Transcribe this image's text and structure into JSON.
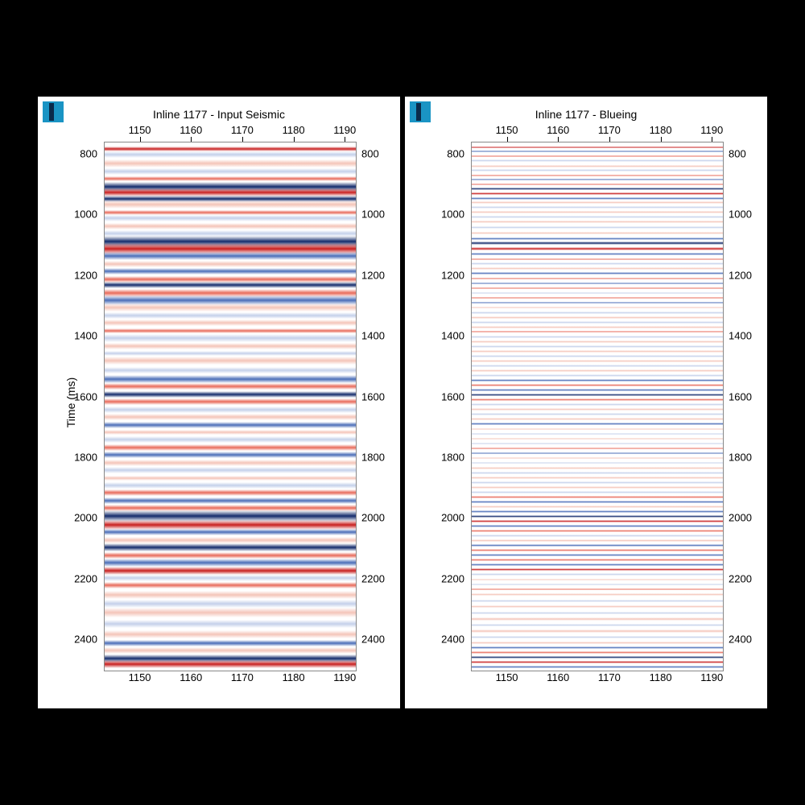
{
  "background_color": "#000000",
  "panel_bg": "#ffffff",
  "axis_font_size": 13,
  "title_font_size": 14,
  "badge_color": "#1a94c4",
  "badge_bar_color": "#0a2a4a",
  "x_axis": {
    "min": 1143,
    "max": 1192,
    "ticks": [
      1150,
      1160,
      1170,
      1180,
      1190
    ]
  },
  "y_axis": {
    "label": "Time (ms)",
    "min": 760,
    "max": 2500,
    "ticks": [
      800,
      1000,
      1200,
      1400,
      1600,
      1800,
      2000,
      2200,
      2400
    ]
  },
  "colors": {
    "pos_strong": "#c81e1e",
    "pos_mid": "#e86a5a",
    "pos_weak": "#f4c4b8",
    "neg_strong": "#122a6b",
    "neg_mid": "#4a6db8",
    "neg_weak": "#c4d0ea",
    "neutral": "#ffffff"
  },
  "panels": [
    {
      "title": "Inline 1177 - Input Seismic",
      "thickness_scale": 1.0,
      "traces": [
        {
          "t": 780,
          "c": "pos_strong",
          "w": 6
        },
        {
          "t": 800,
          "c": "neg_weak",
          "w": 8
        },
        {
          "t": 830,
          "c": "pos_weak",
          "w": 10
        },
        {
          "t": 855,
          "c": "neg_weak",
          "w": 8
        },
        {
          "t": 880,
          "c": "pos_mid",
          "w": 6
        },
        {
          "t": 905,
          "c": "neg_strong",
          "w": 12
        },
        {
          "t": 925,
          "c": "pos_strong",
          "w": 10
        },
        {
          "t": 945,
          "c": "neg_strong",
          "w": 8
        },
        {
          "t": 965,
          "c": "pos_weak",
          "w": 10
        },
        {
          "t": 990,
          "c": "pos_mid",
          "w": 6
        },
        {
          "t": 1010,
          "c": "neg_weak",
          "w": 8
        },
        {
          "t": 1035,
          "c": "pos_weak",
          "w": 8
        },
        {
          "t": 1060,
          "c": "neg_weak",
          "w": 8
        },
        {
          "t": 1085,
          "c": "neg_strong",
          "w": 14
        },
        {
          "t": 1110,
          "c": "pos_strong",
          "w": 14
        },
        {
          "t": 1135,
          "c": "neg_mid",
          "w": 10
        },
        {
          "t": 1160,
          "c": "pos_weak",
          "w": 8
        },
        {
          "t": 1185,
          "c": "neg_mid",
          "w": 8
        },
        {
          "t": 1210,
          "c": "pos_mid",
          "w": 8
        },
        {
          "t": 1230,
          "c": "neg_strong",
          "w": 8
        },
        {
          "t": 1255,
          "c": "pos_mid",
          "w": 10
        },
        {
          "t": 1280,
          "c": "neg_mid",
          "w": 12
        },
        {
          "t": 1305,
          "c": "pos_weak",
          "w": 10
        },
        {
          "t": 1330,
          "c": "neg_weak",
          "w": 8
        },
        {
          "t": 1355,
          "c": "pos_weak",
          "w": 8
        },
        {
          "t": 1380,
          "c": "pos_mid",
          "w": 6
        },
        {
          "t": 1405,
          "c": "neg_weak",
          "w": 10
        },
        {
          "t": 1430,
          "c": "pos_weak",
          "w": 8
        },
        {
          "t": 1455,
          "c": "neg_weak",
          "w": 6
        },
        {
          "t": 1480,
          "c": "pos_weak",
          "w": 10
        },
        {
          "t": 1510,
          "c": "neg_weak",
          "w": 8
        },
        {
          "t": 1540,
          "c": "neg_mid",
          "w": 10
        },
        {
          "t": 1565,
          "c": "pos_mid",
          "w": 8
        },
        {
          "t": 1590,
          "c": "neg_strong",
          "w": 8
        },
        {
          "t": 1615,
          "c": "pos_mid",
          "w": 8
        },
        {
          "t": 1640,
          "c": "neg_weak",
          "w": 8
        },
        {
          "t": 1665,
          "c": "pos_weak",
          "w": 8
        },
        {
          "t": 1690,
          "c": "neg_mid",
          "w": 8
        },
        {
          "t": 1715,
          "c": "pos_weak",
          "w": 6
        },
        {
          "t": 1740,
          "c": "neg_weak",
          "w": 8
        },
        {
          "t": 1765,
          "c": "pos_mid",
          "w": 8
        },
        {
          "t": 1790,
          "c": "neg_mid",
          "w": 8
        },
        {
          "t": 1815,
          "c": "pos_weak",
          "w": 8
        },
        {
          "t": 1840,
          "c": "neg_weak",
          "w": 8
        },
        {
          "t": 1865,
          "c": "pos_weak",
          "w": 6
        },
        {
          "t": 1890,
          "c": "neg_weak",
          "w": 8
        },
        {
          "t": 1915,
          "c": "pos_mid",
          "w": 8
        },
        {
          "t": 1940,
          "c": "neg_mid",
          "w": 8
        },
        {
          "t": 1965,
          "c": "pos_mid",
          "w": 8
        },
        {
          "t": 1990,
          "c": "neg_strong",
          "w": 14
        },
        {
          "t": 2020,
          "c": "pos_strong",
          "w": 12
        },
        {
          "t": 2045,
          "c": "neg_mid",
          "w": 8
        },
        {
          "t": 2070,
          "c": "pos_weak",
          "w": 8
        },
        {
          "t": 2095,
          "c": "neg_strong",
          "w": 10
        },
        {
          "t": 2120,
          "c": "pos_mid",
          "w": 8
        },
        {
          "t": 2145,
          "c": "neg_mid",
          "w": 10
        },
        {
          "t": 2170,
          "c": "pos_strong",
          "w": 10
        },
        {
          "t": 2195,
          "c": "neg_weak",
          "w": 8
        },
        {
          "t": 2220,
          "c": "pos_mid",
          "w": 8
        },
        {
          "t": 2250,
          "c": "pos_weak",
          "w": 10
        },
        {
          "t": 2280,
          "c": "neg_weak",
          "w": 10
        },
        {
          "t": 2310,
          "c": "pos_weak",
          "w": 12
        },
        {
          "t": 2345,
          "c": "neg_weak",
          "w": 10
        },
        {
          "t": 2380,
          "c": "pos_weak",
          "w": 10
        },
        {
          "t": 2410,
          "c": "neg_mid",
          "w": 8
        },
        {
          "t": 2435,
          "c": "pos_weak",
          "w": 8
        },
        {
          "t": 2460,
          "c": "neg_strong",
          "w": 10
        },
        {
          "t": 2480,
          "c": "pos_strong",
          "w": 10
        }
      ]
    },
    {
      "title": "Inline 1177 - Blueing",
      "thickness_scale": 0.55,
      "traces": [
        {
          "t": 775,
          "c": "pos_strong",
          "w": 4
        },
        {
          "t": 790,
          "c": "neg_mid",
          "w": 4
        },
        {
          "t": 805,
          "c": "pos_mid",
          "w": 4
        },
        {
          "t": 820,
          "c": "neg_weak",
          "w": 6
        },
        {
          "t": 838,
          "c": "pos_weak",
          "w": 5
        },
        {
          "t": 852,
          "c": "neg_weak",
          "w": 5
        },
        {
          "t": 868,
          "c": "pos_mid",
          "w": 4
        },
        {
          "t": 882,
          "c": "neg_mid",
          "w": 5
        },
        {
          "t": 898,
          "c": "pos_mid",
          "w": 4
        },
        {
          "t": 912,
          "c": "neg_strong",
          "w": 6
        },
        {
          "t": 928,
          "c": "pos_strong",
          "w": 6
        },
        {
          "t": 944,
          "c": "neg_mid",
          "w": 5
        },
        {
          "t": 958,
          "c": "pos_weak",
          "w": 5
        },
        {
          "t": 974,
          "c": "neg_weak",
          "w": 5
        },
        {
          "t": 990,
          "c": "pos_weak",
          "w": 5
        },
        {
          "t": 1006,
          "c": "neg_weak",
          "w": 5
        },
        {
          "t": 1022,
          "c": "pos_weak",
          "w": 5
        },
        {
          "t": 1040,
          "c": "neg_weak",
          "w": 5
        },
        {
          "t": 1058,
          "c": "pos_weak",
          "w": 5
        },
        {
          "t": 1076,
          "c": "neg_mid",
          "w": 5
        },
        {
          "t": 1092,
          "c": "neg_strong",
          "w": 8
        },
        {
          "t": 1110,
          "c": "pos_strong",
          "w": 8
        },
        {
          "t": 1128,
          "c": "neg_mid",
          "w": 5
        },
        {
          "t": 1144,
          "c": "pos_mid",
          "w": 4
        },
        {
          "t": 1160,
          "c": "neg_weak",
          "w": 5
        },
        {
          "t": 1176,
          "c": "pos_weak",
          "w": 5
        },
        {
          "t": 1192,
          "c": "neg_mid",
          "w": 5
        },
        {
          "t": 1208,
          "c": "pos_mid",
          "w": 5
        },
        {
          "t": 1224,
          "c": "neg_mid",
          "w": 5
        },
        {
          "t": 1240,
          "c": "pos_mid",
          "w": 5
        },
        {
          "t": 1256,
          "c": "neg_weak",
          "w": 5
        },
        {
          "t": 1272,
          "c": "pos_mid",
          "w": 5
        },
        {
          "t": 1288,
          "c": "neg_mid",
          "w": 5
        },
        {
          "t": 1304,
          "c": "pos_weak",
          "w": 5
        },
        {
          "t": 1320,
          "c": "neg_weak",
          "w": 5
        },
        {
          "t": 1336,
          "c": "pos_weak",
          "w": 5
        },
        {
          "t": 1352,
          "c": "neg_weak",
          "w": 5
        },
        {
          "t": 1368,
          "c": "pos_weak",
          "w": 5
        },
        {
          "t": 1384,
          "c": "pos_mid",
          "w": 4
        },
        {
          "t": 1400,
          "c": "neg_weak",
          "w": 5
        },
        {
          "t": 1416,
          "c": "pos_weak",
          "w": 5
        },
        {
          "t": 1432,
          "c": "neg_weak",
          "w": 5
        },
        {
          "t": 1448,
          "c": "pos_weak",
          "w": 5
        },
        {
          "t": 1464,
          "c": "neg_weak",
          "w": 5
        },
        {
          "t": 1480,
          "c": "pos_weak",
          "w": 5
        },
        {
          "t": 1496,
          "c": "neg_weak",
          "w": 5
        },
        {
          "t": 1512,
          "c": "pos_weak",
          "w": 5
        },
        {
          "t": 1528,
          "c": "neg_weak",
          "w": 5
        },
        {
          "t": 1544,
          "c": "neg_mid",
          "w": 5
        },
        {
          "t": 1560,
          "c": "pos_mid",
          "w": 5
        },
        {
          "t": 1576,
          "c": "neg_mid",
          "w": 5
        },
        {
          "t": 1592,
          "c": "neg_strong",
          "w": 5
        },
        {
          "t": 1608,
          "c": "pos_mid",
          "w": 5
        },
        {
          "t": 1624,
          "c": "neg_weak",
          "w": 5
        },
        {
          "t": 1640,
          "c": "pos_weak",
          "w": 5
        },
        {
          "t": 1656,
          "c": "neg_weak",
          "w": 5
        },
        {
          "t": 1672,
          "c": "pos_weak",
          "w": 5
        },
        {
          "t": 1688,
          "c": "neg_mid",
          "w": 5
        },
        {
          "t": 1704,
          "c": "pos_weak",
          "w": 5
        },
        {
          "t": 1720,
          "c": "neg_weak",
          "w": 5
        },
        {
          "t": 1736,
          "c": "pos_weak",
          "w": 5
        },
        {
          "t": 1752,
          "c": "neg_weak",
          "w": 5
        },
        {
          "t": 1768,
          "c": "pos_mid",
          "w": 5
        },
        {
          "t": 1784,
          "c": "neg_mid",
          "w": 5
        },
        {
          "t": 1800,
          "c": "pos_weak",
          "w": 5
        },
        {
          "t": 1816,
          "c": "neg_weak",
          "w": 5
        },
        {
          "t": 1832,
          "c": "pos_weak",
          "w": 5
        },
        {
          "t": 1848,
          "c": "neg_weak",
          "w": 5
        },
        {
          "t": 1864,
          "c": "pos_weak",
          "w": 5
        },
        {
          "t": 1880,
          "c": "neg_weak",
          "w": 5
        },
        {
          "t": 1896,
          "c": "pos_weak",
          "w": 5
        },
        {
          "t": 1912,
          "c": "neg_weak",
          "w": 5
        },
        {
          "t": 1928,
          "c": "pos_mid",
          "w": 5
        },
        {
          "t": 1944,
          "c": "neg_mid",
          "w": 5
        },
        {
          "t": 1960,
          "c": "pos_weak",
          "w": 5
        },
        {
          "t": 1976,
          "c": "neg_mid",
          "w": 5
        },
        {
          "t": 1992,
          "c": "neg_strong",
          "w": 6
        },
        {
          "t": 2008,
          "c": "pos_strong",
          "w": 6
        },
        {
          "t": 2024,
          "c": "neg_mid",
          "w": 5
        },
        {
          "t": 2040,
          "c": "pos_mid",
          "w": 5
        },
        {
          "t": 2056,
          "c": "neg_weak",
          "w": 5
        },
        {
          "t": 2072,
          "c": "pos_weak",
          "w": 5
        },
        {
          "t": 2088,
          "c": "neg_mid",
          "w": 5
        },
        {
          "t": 2104,
          "c": "pos_mid",
          "w": 5
        },
        {
          "t": 2120,
          "c": "neg_mid",
          "w": 5
        },
        {
          "t": 2136,
          "c": "pos_mid",
          "w": 5
        },
        {
          "t": 2152,
          "c": "neg_mid",
          "w": 5
        },
        {
          "t": 2168,
          "c": "pos_strong",
          "w": 5
        },
        {
          "t": 2184,
          "c": "neg_weak",
          "w": 5
        },
        {
          "t": 2200,
          "c": "pos_weak",
          "w": 5
        },
        {
          "t": 2216,
          "c": "neg_weak",
          "w": 5
        },
        {
          "t": 2232,
          "c": "pos_mid",
          "w": 5
        },
        {
          "t": 2250,
          "c": "pos_weak",
          "w": 6
        },
        {
          "t": 2270,
          "c": "neg_weak",
          "w": 6
        },
        {
          "t": 2290,
          "c": "pos_weak",
          "w": 6
        },
        {
          "t": 2310,
          "c": "neg_weak",
          "w": 6
        },
        {
          "t": 2330,
          "c": "pos_weak",
          "w": 6
        },
        {
          "t": 2350,
          "c": "neg_weak",
          "w": 6
        },
        {
          "t": 2370,
          "c": "pos_weak",
          "w": 6
        },
        {
          "t": 2390,
          "c": "neg_weak",
          "w": 5
        },
        {
          "t": 2408,
          "c": "pos_weak",
          "w": 5
        },
        {
          "t": 2424,
          "c": "neg_mid",
          "w": 5
        },
        {
          "t": 2440,
          "c": "pos_mid",
          "w": 5
        },
        {
          "t": 2456,
          "c": "neg_strong",
          "w": 5
        },
        {
          "t": 2472,
          "c": "pos_strong",
          "w": 6
        },
        {
          "t": 2488,
          "c": "neg_mid",
          "w": 5
        }
      ]
    }
  ]
}
